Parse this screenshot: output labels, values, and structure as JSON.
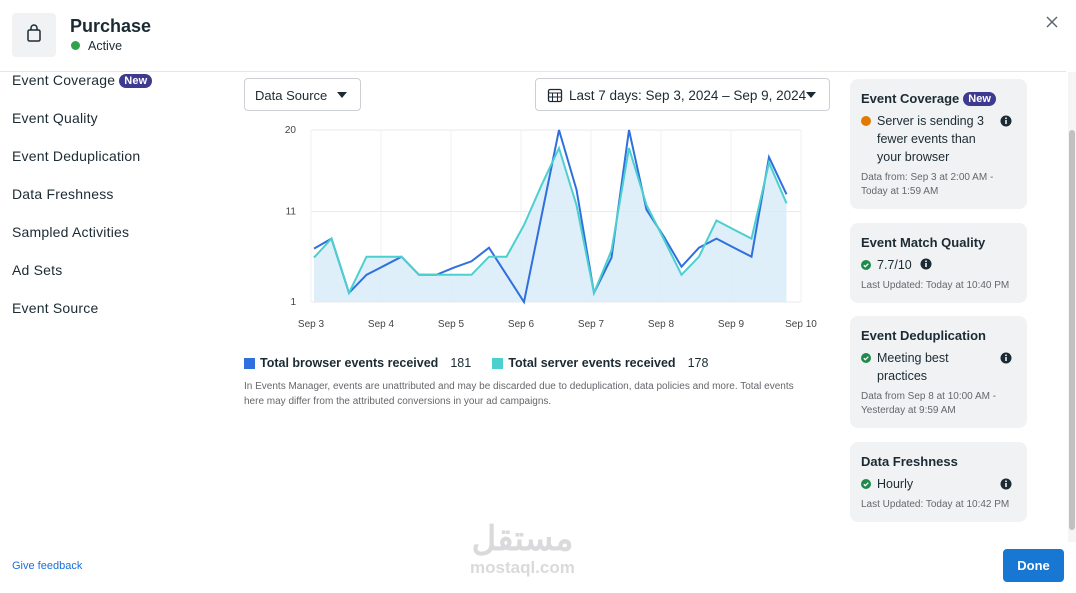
{
  "header": {
    "title": "Purchase",
    "status": "Active"
  },
  "nav": {
    "items": [
      "Event Coverage",
      "Event Quality",
      "Event Deduplication",
      "Data Freshness",
      "Sampled Activities",
      "Ad Sets",
      "Event Source"
    ],
    "badge": "New"
  },
  "controls": {
    "data_source": "Data Source",
    "date_range": "Last 7 days: Sep 3, 2024 – Sep 9, 2024"
  },
  "chart_data": {
    "type": "line",
    "x": [
      0,
      0.25,
      0.5,
      0.75,
      1,
      1.25,
      1.5,
      1.75,
      2,
      2.25,
      2.5,
      2.75,
      3,
      3.25,
      3.5,
      3.75,
      4,
      4.25,
      4.5,
      4.75,
      5,
      5.25,
      5.5,
      5.75,
      6,
      6.25,
      6.5,
      6.75
    ],
    "xlim": [
      0,
      7
    ],
    "xticks": [
      {
        "value": 0,
        "label": "Sep 3"
      },
      {
        "value": 1,
        "label": "Sep 4"
      },
      {
        "value": 2,
        "label": "Sep 5"
      },
      {
        "value": 3,
        "label": "Sep 6"
      },
      {
        "value": 4,
        "label": "Sep 7"
      },
      {
        "value": 5,
        "label": "Sep 8"
      },
      {
        "value": 6,
        "label": "Sep 9"
      },
      {
        "value": 7,
        "label": "Sep 10"
      }
    ],
    "ylim": [
      1,
      20
    ],
    "yticks": [
      1,
      11,
      20
    ],
    "grid": true,
    "series": [
      {
        "name": "Total browser events received",
        "total": 181,
        "color": "#2f6fde",
        "values": [
          6.9,
          8.0,
          2.0,
          4.0,
          5.0,
          6.0,
          4.0,
          4.0,
          4.8,
          5.5,
          7.0,
          4.0,
          1.0,
          10.5,
          20,
          13.4,
          2.0,
          5.9,
          20,
          11.2,
          8.2,
          4.9,
          7.0,
          8.0,
          7.0,
          6.0,
          17.0,
          12.9
        ]
      },
      {
        "name": "Total server events received",
        "total": 178,
        "color": "#4ccfcf",
        "values": [
          5.9,
          8.0,
          2.0,
          6.0,
          6.0,
          6.0,
          4.0,
          4.0,
          4.0,
          4.0,
          6.0,
          6.0,
          9.5,
          13.9,
          18.0,
          11.7,
          2.0,
          6.7,
          18.0,
          11.7,
          7.9,
          4.0,
          6.0,
          10.0,
          9.0,
          8.0,
          16.4,
          11.9
        ]
      }
    ]
  },
  "note": "In Events Manager, events are unattributed and may be discarded due to deduplication, data policies and more. Total events here may differ from the attributed conversions in your ad campaigns.",
  "cards": [
    {
      "title": "Event Coverage",
      "badge": "New",
      "status": "Server is sending 3 fewer events than your browser",
      "meta": "Data from: Sep 3 at 2:00 AM - Today at 1:59 AM"
    },
    {
      "title": "Event Match Quality",
      "status": "7.7/10",
      "meta": "Last Updated: Today at 10:40 PM"
    },
    {
      "title": "Event Deduplication",
      "status": "Meeting best practices",
      "meta": "Data from Sep 8 at 10:00 AM - Yesterday at 9:59 AM"
    },
    {
      "title": "Data Freshness",
      "status": "Hourly",
      "meta": "Last Updated: Today at 10:42 PM"
    }
  ],
  "footer": {
    "feedback": "Give feedback",
    "done": "Done"
  },
  "watermark": [
    "مستقل",
    "mostaql.com"
  ]
}
